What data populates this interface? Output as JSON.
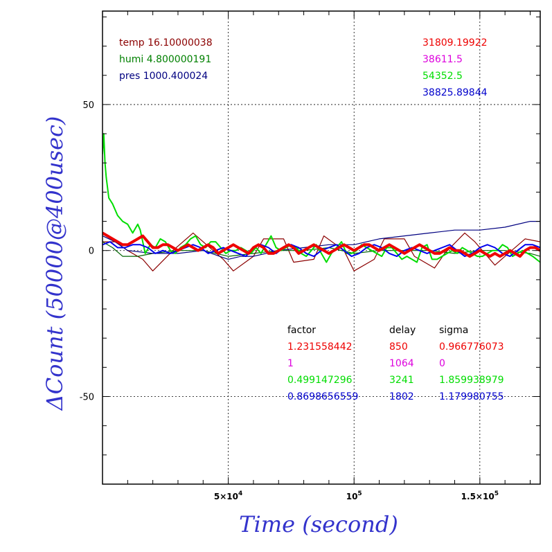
{
  "chart_data": {
    "type": "line",
    "xlabel": "Time (second)",
    "ylabel": "ΔCount (50000@400usec)",
    "xlim": [
      0,
      174000
    ],
    "ylim": [
      -80,
      82
    ],
    "xticks": [
      {
        "value": 50000,
        "label_base": "5×10",
        "label_exp": "4"
      },
      {
        "value": 100000,
        "label_base": "10",
        "label_exp": "5"
      },
      {
        "value": 150000,
        "label_base": "1.5×10",
        "label_exp": "5"
      }
    ],
    "yticks": [
      {
        "value": 50,
        "label": "50"
      },
      {
        "value": 0,
        "label": "0"
      },
      {
        "value": -50,
        "label": "-50"
      }
    ],
    "grid": true,
    "env_text": [
      {
        "text": "temp 16.10000038",
        "color": "#8b0000"
      },
      {
        "text": "humi 4.800000191",
        "color": "#008000"
      },
      {
        "text": "pres 1000.400024",
        "color": "#000080"
      }
    ],
    "mean_text": [
      {
        "text": "31809.19922",
        "color": "#ee0000"
      },
      {
        "text": "38611.5",
        "color": "#dd00dd"
      },
      {
        "text": "54352.5",
        "color": "#00dd00"
      },
      {
        "text": "38825.89844",
        "color": "#0000cc"
      }
    ],
    "table": {
      "headers": [
        "factor",
        "delay",
        "sigma"
      ],
      "rows": [
        {
          "factor": "1.231558442",
          "delay": "850",
          "sigma": "0.966776073",
          "color": "#ee0000"
        },
        {
          "factor": "1",
          "delay": "1064",
          "sigma": "0",
          "color": "#dd00dd"
        },
        {
          "factor": "0.499147296",
          "delay": "3241",
          "sigma": "1.859938979",
          "color": "#00dd00"
        },
        {
          "factor": "0.8698656559",
          "delay": "1802",
          "sigma": "1.179980755",
          "color": "#0000cc"
        }
      ]
    },
    "series": [
      {
        "color": "#8b0000",
        "width": 1.2,
        "x": [
          0,
          5000,
          10000,
          16000,
          20000,
          28000,
          36000,
          40000,
          48000,
          52000,
          60000,
          64000,
          72000,
          76000,
          84000,
          88000,
          96000,
          100000,
          108000,
          112000,
          120000,
          124000,
          132000,
          136000,
          144000,
          148000,
          156000,
          160000,
          168000,
          174000
        ],
        "y": [
          3,
          3,
          0,
          -3,
          -7,
          0,
          6,
          3,
          -3,
          -7,
          -2,
          4,
          4,
          -4,
          -3,
          5,
          0,
          -7,
          -3,
          4,
          4,
          -2,
          -6,
          -1,
          6,
          3,
          -5,
          -2,
          4,
          3
        ]
      },
      {
        "color": "#006400",
        "width": 1.2,
        "x": [
          0,
          4000,
          8000,
          14000,
          20000,
          30000,
          40000,
          50000,
          60000,
          70000,
          80000,
          90000,
          100000,
          110000,
          120000,
          130000,
          140000,
          150000,
          160000,
          170000,
          174000
        ],
        "y": [
          3,
          1,
          -2,
          -2,
          -1,
          0,
          0,
          -2,
          -1,
          0,
          0,
          1,
          -1,
          0,
          0,
          0,
          -1,
          0,
          0,
          -1,
          -2
        ]
      },
      {
        "color": "#000080",
        "width": 1.2,
        "x": [
          0,
          5000,
          10000,
          20000,
          30000,
          40000,
          50000,
          55000,
          60000,
          70000,
          80000,
          90000,
          100000,
          105000,
          110000,
          120000,
          130000,
          140000,
          150000,
          160000,
          170000,
          174000
        ],
        "y": [
          5,
          3,
          0,
          -1,
          -1,
          0,
          -3,
          -2,
          -2,
          0,
          1,
          2,
          2,
          3,
          4,
          5,
          6,
          7,
          7,
          8,
          10,
          10
        ]
      },
      {
        "color": "#00dd00",
        "width": 2.0,
        "x": [
          0,
          500,
          1000,
          1500,
          2500,
          4000,
          6000,
          8000,
          10000,
          12000,
          14000,
          15000,
          17000,
          19000,
          21000,
          23000,
          25000,
          27000,
          29000,
          31000,
          33000,
          35000,
          37000,
          39000,
          41000,
          43000,
          45000,
          47000,
          49000,
          51000,
          53000,
          55000,
          57000,
          59000,
          61000,
          63000,
          65000,
          67000,
          69000,
          71000,
          73000,
          75000,
          77000,
          79000,
          81000,
          83000,
          85000,
          87000,
          89000,
          91000,
          93000,
          95000,
          97000,
          99000,
          101000,
          103000,
          105000,
          107000,
          109000,
          111000,
          113000,
          115000,
          117000,
          119000,
          121000,
          123000,
          125000,
          127000,
          129000,
          131000,
          133000,
          135000,
          137000,
          139000,
          141000,
          143000,
          145000,
          147000,
          149000,
          151000,
          153000,
          155000,
          157000,
          159000,
          161000,
          163000,
          165000,
          167000,
          169000,
          171000,
          174000
        ],
        "y": [
          33,
          40,
          30,
          25,
          18,
          16,
          12,
          10,
          9,
          6,
          9,
          7,
          -1,
          2,
          1,
          4,
          3,
          0,
          -1,
          1,
          2,
          4,
          5,
          2,
          1,
          3,
          3,
          1,
          -1,
          0,
          0,
          1,
          0,
          -1,
          1,
          -1,
          2,
          5,
          1,
          0,
          1,
          2,
          1,
          -1,
          -2,
          0,
          2,
          -1,
          -4,
          -1,
          1,
          3,
          -1,
          -1,
          0,
          2,
          1,
          0,
          -1,
          -2,
          1,
          1,
          -1,
          -3,
          -2,
          -3,
          -4,
          1,
          2,
          -3,
          -3,
          -2,
          -1,
          0,
          -1,
          1,
          0,
          -1,
          -2,
          -2,
          -1,
          0,
          0,
          2,
          1,
          -2,
          -1,
          0,
          -1,
          -2,
          -4
        ]
      },
      {
        "color": "#0000ee",
        "width": 2.0,
        "x": [
          0,
          3000,
          6000,
          9000,
          12000,
          15000,
          18000,
          21000,
          24000,
          27000,
          30000,
          33000,
          36000,
          39000,
          42000,
          45000,
          48000,
          51000,
          54000,
          57000,
          60000,
          63000,
          66000,
          69000,
          72000,
          75000,
          78000,
          81000,
          84000,
          87000,
          90000,
          93000,
          96000,
          99000,
          102000,
          105000,
          108000,
          111000,
          114000,
          117000,
          120000,
          123000,
          126000,
          129000,
          132000,
          135000,
          138000,
          141000,
          144000,
          147000,
          150000,
          153000,
          156000,
          159000,
          162000,
          165000,
          168000,
          171000,
          174000
        ],
        "y": [
          2,
          3,
          1,
          1,
          2,
          2,
          1,
          -1,
          0,
          -1,
          0,
          1,
          2,
          1,
          -1,
          0,
          1,
          0,
          -1,
          -2,
          1,
          2,
          1,
          -1,
          1,
          2,
          1,
          -1,
          -2,
          0,
          1,
          2,
          0,
          -2,
          -1,
          1,
          2,
          1,
          -1,
          -2,
          0,
          1,
          0,
          -1,
          0,
          1,
          2,
          0,
          -2,
          -1,
          1,
          2,
          1,
          -1,
          -2,
          0,
          2,
          2,
          1
        ]
      },
      {
        "color": "#ee0000",
        "width": 4.0,
        "x": [
          0,
          2000,
          4000,
          6000,
          8000,
          10000,
          12000,
          14000,
          16000,
          18000,
          20000,
          22000,
          24000,
          26000,
          28000,
          30000,
          32000,
          34000,
          36000,
          38000,
          40000,
          42000,
          44000,
          46000,
          48000,
          50000,
          52000,
          54000,
          56000,
          58000,
          60000,
          62000,
          64000,
          66000,
          68000,
          70000,
          72000,
          74000,
          76000,
          78000,
          80000,
          82000,
          84000,
          86000,
          88000,
          90000,
          92000,
          94000,
          96000,
          98000,
          100000,
          102000,
          104000,
          106000,
          108000,
          110000,
          112000,
          114000,
          116000,
          118000,
          120000,
          122000,
          124000,
          126000,
          128000,
          130000,
          132000,
          134000,
          136000,
          138000,
          140000,
          142000,
          144000,
          146000,
          148000,
          150000,
          152000,
          154000,
          156000,
          158000,
          160000,
          162000,
          164000,
          166000,
          168000,
          170000,
          172000,
          174000
        ],
        "y": [
          6,
          5,
          4,
          3,
          2,
          2,
          3,
          4,
          5,
          3,
          1,
          1,
          2,
          2,
          1,
          0,
          1,
          2,
          1,
          0,
          1,
          2,
          1,
          -1,
          0,
          1,
          2,
          1,
          0,
          -1,
          1,
          2,
          1,
          -1,
          -1,
          0,
          1,
          2,
          1,
          -1,
          0,
          1,
          2,
          1,
          0,
          -1,
          0,
          1,
          2,
          1,
          0,
          1,
          2,
          2,
          1,
          0,
          1,
          2,
          1,
          0,
          -1,
          0,
          1,
          2,
          1,
          0,
          -1,
          -1,
          0,
          1,
          0,
          0,
          -1,
          -2,
          -1,
          0,
          -1,
          -2,
          -1,
          -2,
          -1,
          0,
          -1,
          -2,
          0,
          1,
          1,
          0
        ]
      }
    ]
  }
}
